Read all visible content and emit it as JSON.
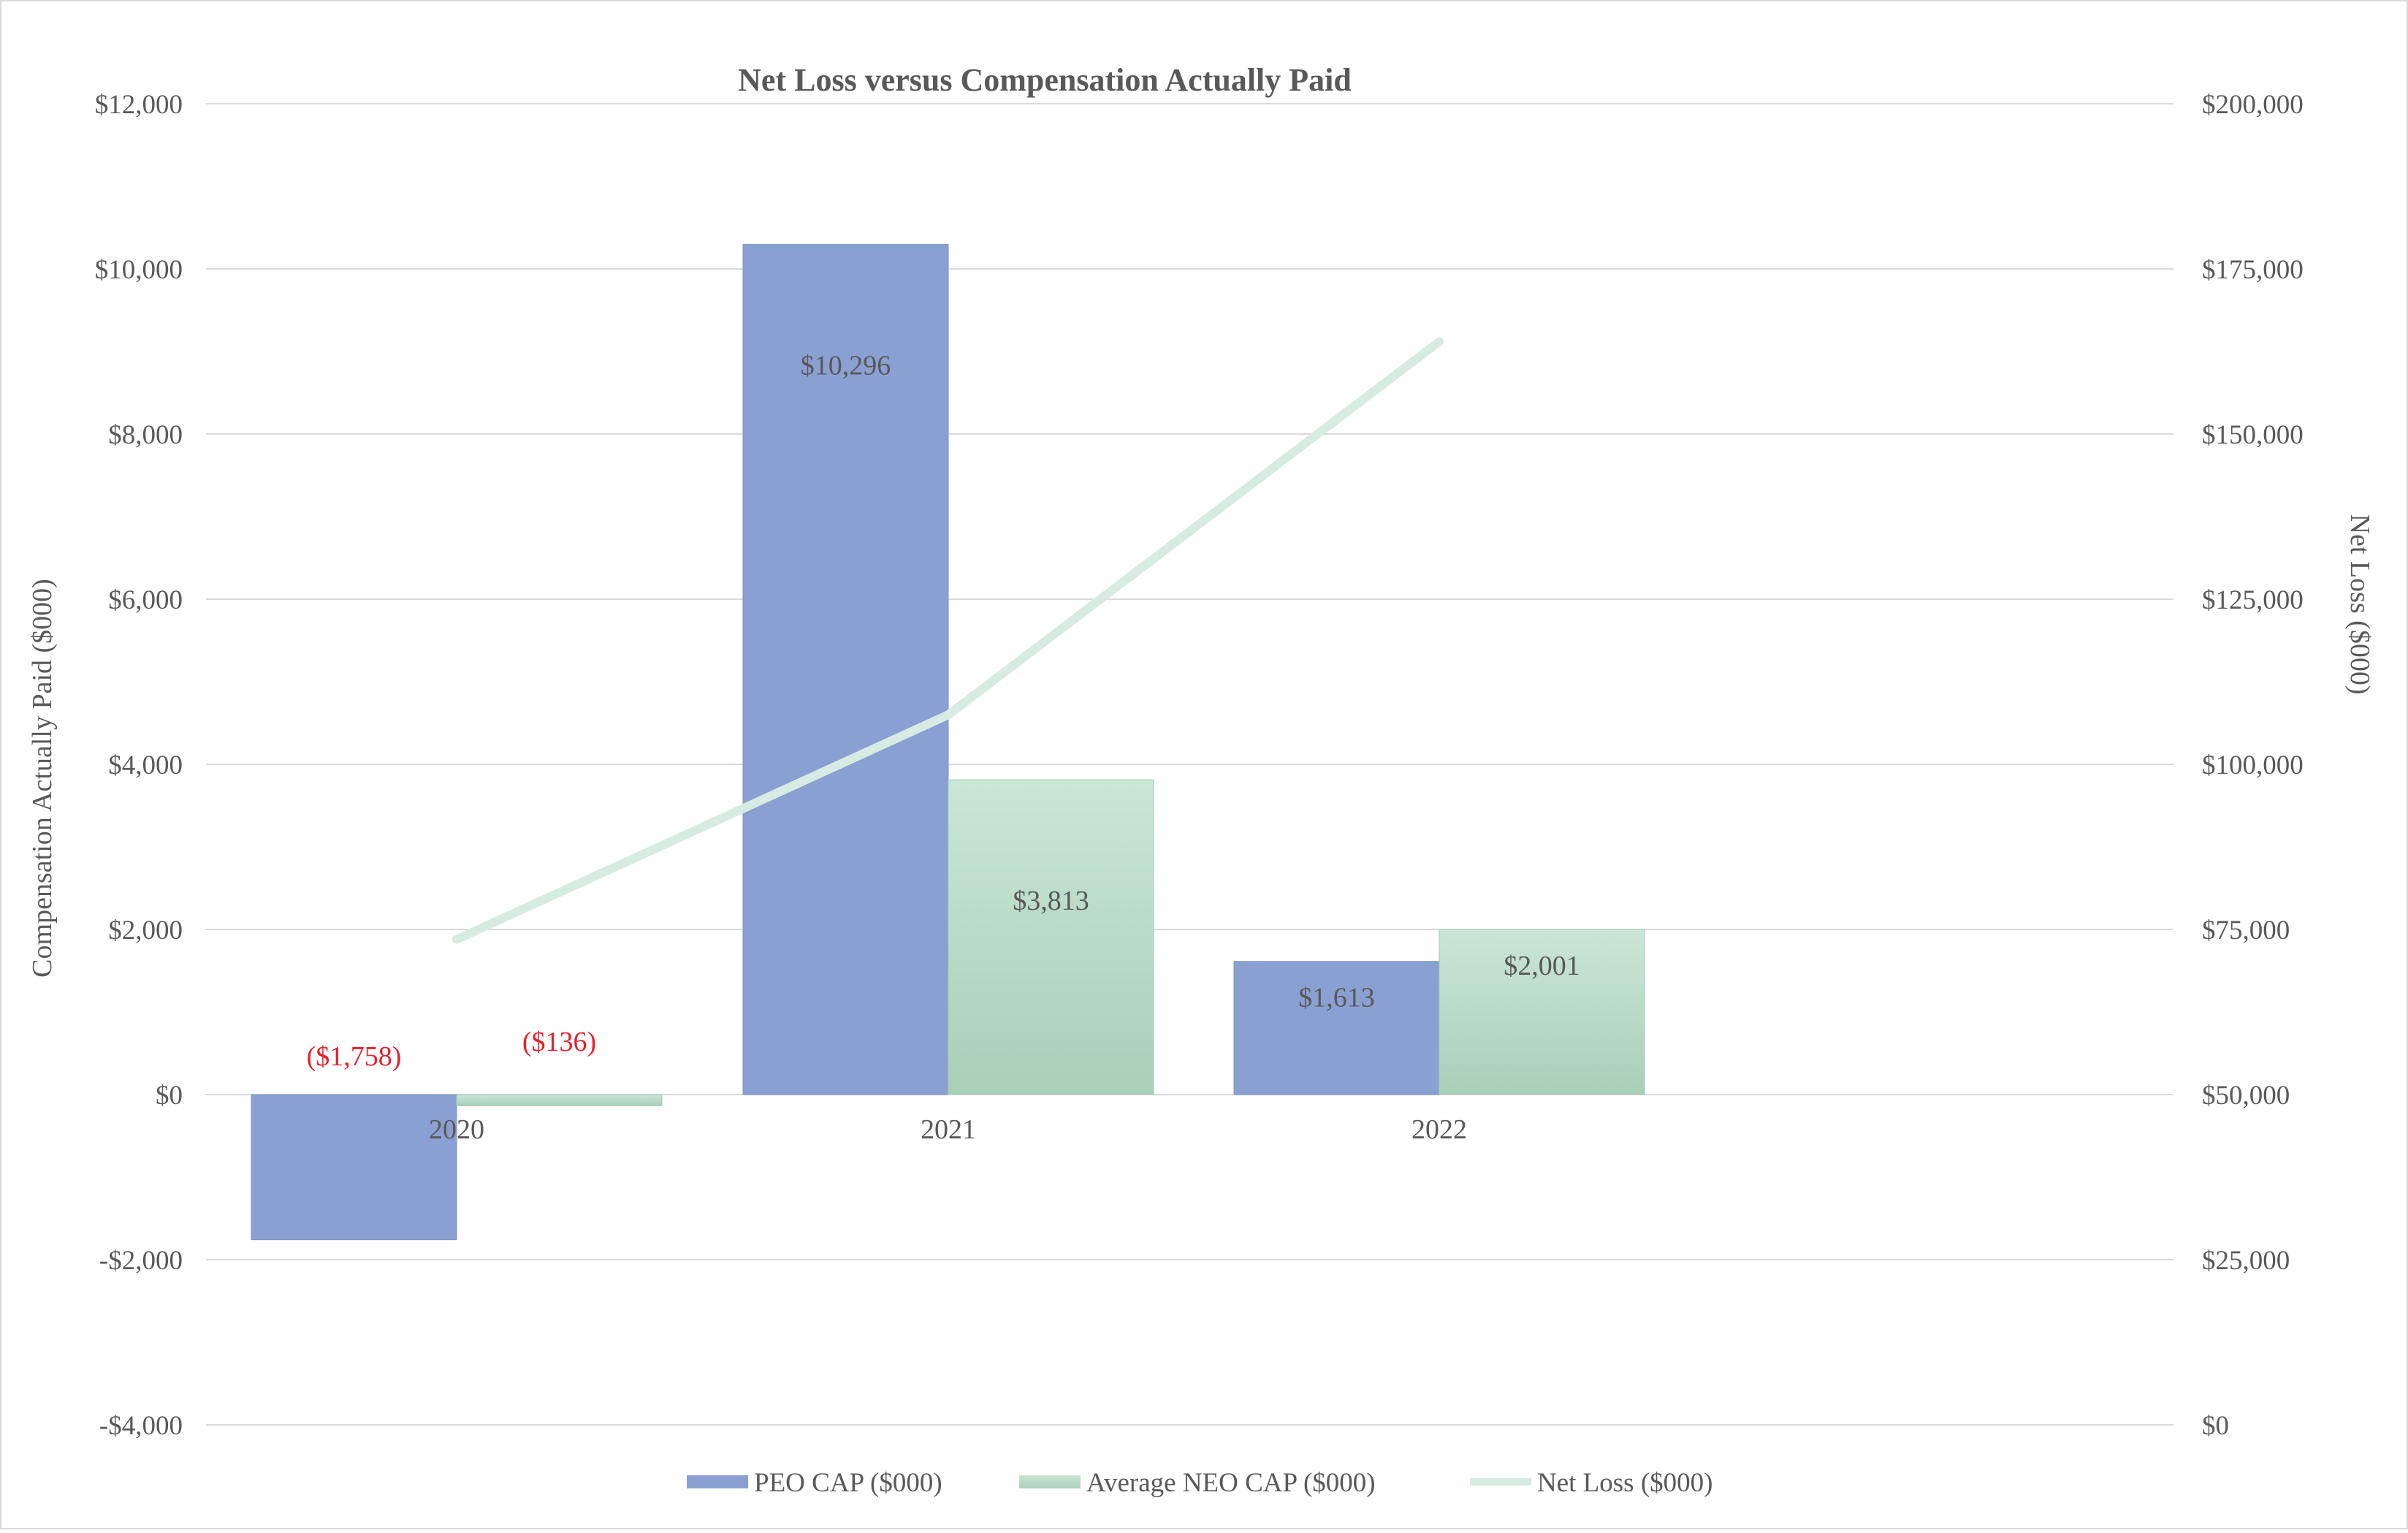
{
  "chart_data": {
    "type": "bar",
    "title": "Net Loss versus Compensation Actually Paid",
    "categories": [
      "2020",
      "2021",
      "2022"
    ],
    "series": [
      {
        "name": "PEO CAP ($000)",
        "kind": "bar",
        "axis": "left",
        "values": [
          -1758,
          10296,
          1613
        ],
        "labels": [
          "($1,758)",
          "$10,296",
          "$1,613"
        ],
        "color": "#8aa0d2"
      },
      {
        "name": "Average NEO CAP ($000)",
        "kind": "bar",
        "axis": "left",
        "values": [
          -136,
          3813,
          2001
        ],
        "labels": [
          "($136)",
          "$3,813",
          "$2,001"
        ],
        "color": "#b9dcc8"
      },
      {
        "name": "Net Loss ($000)",
        "kind": "line",
        "axis": "right",
        "values": [
          73500,
          107500,
          164000
        ],
        "color": "#d6ebe2"
      }
    ],
    "y_left": {
      "label": "Compensation Actually Paid ($000)",
      "min": -4000,
      "max": 12000,
      "ticks": [
        "$12,000",
        "$10,000",
        "$8,000",
        "$6,000",
        "$4,000",
        "$2,000",
        "$0",
        "-$2,000",
        "-$4,000"
      ],
      "tick_values": [
        12000,
        10000,
        8000,
        6000,
        4000,
        2000,
        0,
        -2000,
        -4000
      ]
    },
    "y_right": {
      "label": "Net Loss ($000)",
      "min": 0,
      "max": 200000,
      "ticks": [
        "$200,000",
        "$175,000",
        "$150,000",
        "$125,000",
        "$100,000",
        "$75,000",
        "$50,000",
        "$25,000",
        "$0"
      ],
      "tick_values": [
        200000,
        175000,
        150000,
        125000,
        100000,
        75000,
        50000,
        25000,
        0
      ]
    },
    "negative_label_color": "#e8202a",
    "label_color": "#595959",
    "grid": true,
    "legend_position": "bottom"
  }
}
